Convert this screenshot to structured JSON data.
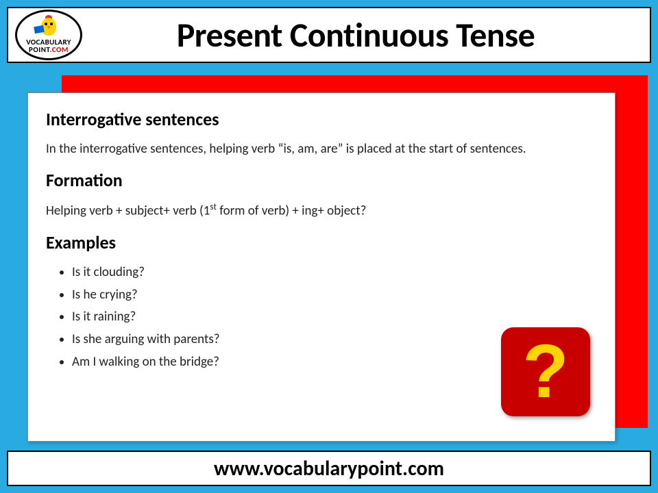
{
  "header": {
    "logo": {
      "top": "VOCABULARY",
      "bottom": "POINT",
      "dot_com": ".COM"
    },
    "title": "Present Continuous Tense"
  },
  "content": {
    "section1": {
      "heading": "Interrogative sentences",
      "text": "In the interrogative sentences, helping verb “is, am, are” is placed at the start of sentences."
    },
    "section2": {
      "heading": "Formation",
      "text_pre": "Helping verb + subject+ verb (1",
      "text_sup": "st",
      "text_post": " form of verb) + ing+ object?"
    },
    "section3": {
      "heading": "Examples",
      "items": [
        "Is it clouding?",
        "Is he crying?",
        "Is it raining?",
        "Is she arguing with parents?",
        "Am I walking on the bridge?"
      ]
    },
    "qmark": "?"
  },
  "footer": {
    "url": "www.vocabularypoint.com"
  },
  "colors": {
    "bg": "#29abe2",
    "red_card": "#ff0000",
    "qbox": "#c80000",
    "qmark": "#ffd400"
  }
}
